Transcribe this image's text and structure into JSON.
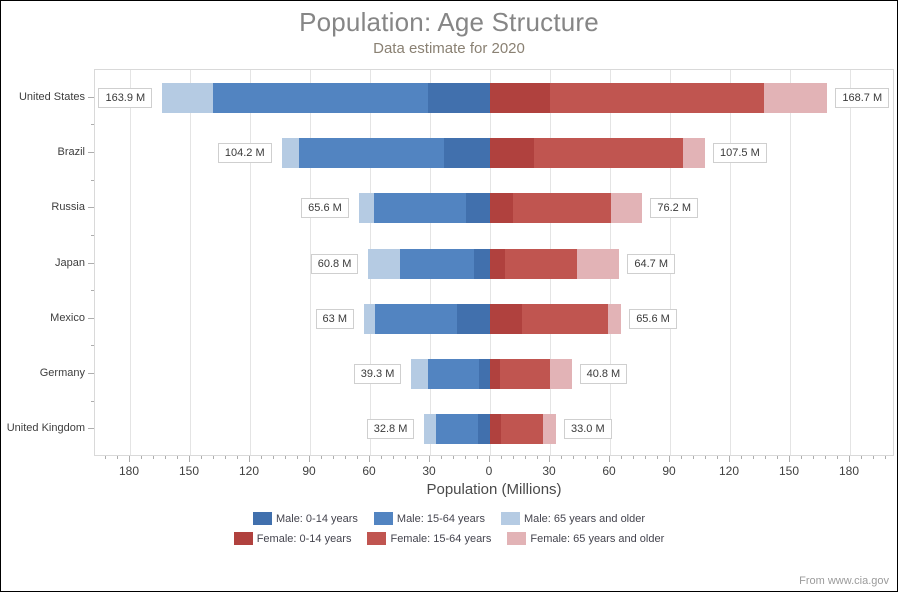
{
  "chart_data": {
    "type": "bar",
    "variant": "horizontal-diverging-stacked",
    "title": "Population: Age Structure",
    "subtitle": "Data estimate for 2020",
    "xlabel": "Population (Millions)",
    "x_major_ticks": [
      -180,
      -150,
      -120,
      -90,
      -60,
      -30,
      0,
      30,
      60,
      90,
      120,
      150,
      180
    ],
    "x_minor_step": 6,
    "x_range": [
      -197.5,
      202.5
    ],
    "grid": "vertical-major-only",
    "legend_position": "bottom",
    "categories": [
      "United States",
      "Brazil",
      "Russia",
      "Japan",
      "Mexico",
      "Germany",
      "United Kingdom"
    ],
    "series": [
      {
        "name": "Male: 0-14 years",
        "side": "left",
        "color": "#4170ad",
        "values": [
          31.2,
          22.9,
          12.0,
          8.0,
          16.5,
          5.3,
          5.9
        ]
      },
      {
        "name": "Male: 15-64 years",
        "side": "left",
        "color": "#5284c1",
        "values": [
          107.2,
          72.5,
          46.2,
          36.8,
          41.0,
          25.9,
          21.3
        ]
      },
      {
        "name": "Male: 65 years and older",
        "side": "left",
        "color": "#b5cbe3",
        "values": [
          25.5,
          8.8,
          7.4,
          16.0,
          5.5,
          8.1,
          5.6
        ]
      },
      {
        "name": "Female: 0-14 years",
        "side": "right",
        "color": "#b0413e",
        "values": [
          30.0,
          21.9,
          11.5,
          7.6,
          15.8,
          5.0,
          5.6
        ]
      },
      {
        "name": "Female: 15-64 years",
        "side": "right",
        "color": "#c05550",
        "values": [
          107.2,
          74.4,
          48.9,
          35.7,
          43.2,
          25.1,
          20.7
        ]
      },
      {
        "name": "Female: 65 years and older",
        "side": "right",
        "color": "#e2b3b6",
        "values": [
          31.5,
          11.2,
          15.8,
          21.4,
          6.6,
          10.7,
          6.7
        ]
      }
    ],
    "total_labels": {
      "male": [
        "163.9 M",
        "104.2 M",
        "65.6 M",
        "60.8 M",
        "63 M",
        "39.3 M",
        "32.8 M"
      ],
      "female": [
        "168.7 M",
        "107.5 M",
        "76.2 M",
        "64.7 M",
        "65.6 M",
        "40.8 M",
        "33.0 M"
      ]
    },
    "legend_rows": [
      [
        "Male: 0-14 years",
        "Male: 15-64 years",
        "Male: 65 years and older"
      ],
      [
        "Female: 0-14 years",
        "Female: 15-64 years",
        "Female: 65 years and older"
      ]
    ]
  },
  "footer": {
    "source": "From www.cia.gov"
  },
  "style_colors": {
    "grid": "#e4e4e4",
    "plot_border": "#d9d9d9",
    "tick": "#adadad",
    "title": "#868686",
    "subtitle": "#8a8173"
  }
}
